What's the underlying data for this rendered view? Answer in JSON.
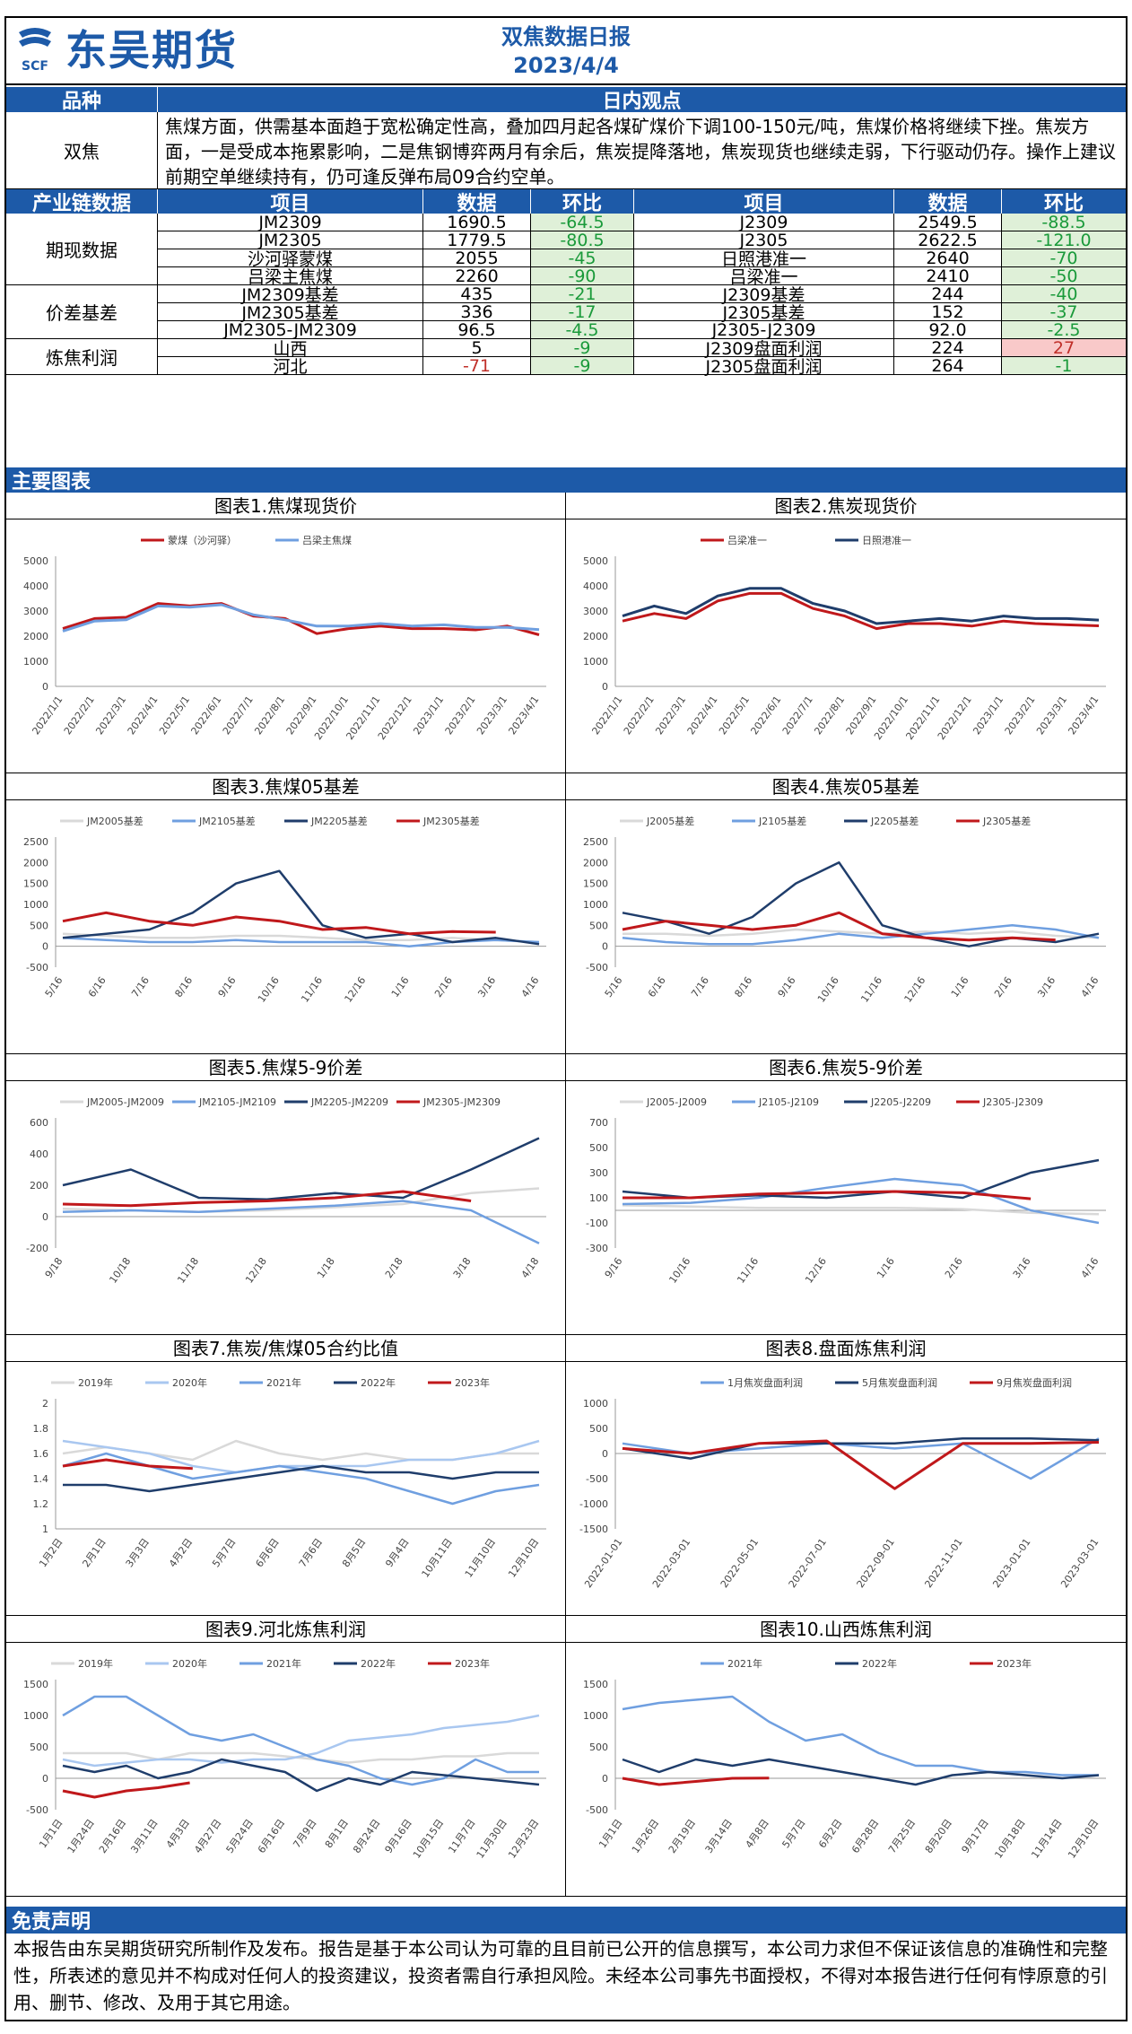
{
  "header": {
    "company": "东吴期货",
    "logo_mark": "SCF",
    "title": "双焦数据日报",
    "date": "2023/4/4"
  },
  "view_section": {
    "col1": "品种",
    "col2": "日内观点",
    "variety": "双焦",
    "text": "焦煤方面，供需基本面趋于宽松确定性高，叠加四月起各煤矿煤价下调100-150元/吨，焦煤价格将继续下挫。焦炭方面，一是受成本拖累影响，二是焦钢博弈两月有余后，焦炭提降落地，焦炭现货也继续走弱，下行驱动仍存。操作上建议前期空单继续持有，仍可逢反弹布局09合约空单。"
  },
  "data_section": {
    "headers": [
      "产业链数据",
      "项目",
      "数据",
      "环比",
      "项目",
      "数据",
      "环比"
    ],
    "groups": [
      {
        "name": "期现数据",
        "rows": [
          {
            "l_item": "JM2309",
            "l_val": "1690.5",
            "l_chg": "-64.5",
            "l_cls": "green",
            "r_item": "J2309",
            "r_val": "2549.5",
            "r_chg": "-88.5",
            "r_cls": "green"
          },
          {
            "l_item": "JM2305",
            "l_val": "1779.5",
            "l_chg": "-80.5",
            "l_cls": "green",
            "r_item": "J2305",
            "r_val": "2622.5",
            "r_chg": "-121.0",
            "r_cls": "green"
          },
          {
            "l_item": "沙河驿蒙煤",
            "l_val": "2055",
            "l_chg": "-45",
            "l_cls": "green",
            "r_item": "日照港准一",
            "r_val": "2640",
            "r_chg": "-70",
            "r_cls": "green"
          },
          {
            "l_item": "吕梁主焦煤",
            "l_val": "2260",
            "l_chg": "-90",
            "l_cls": "green",
            "r_item": "吕梁准一",
            "r_val": "2410",
            "r_chg": "-50",
            "r_cls": "green"
          }
        ]
      },
      {
        "name": "价差基差",
        "rows": [
          {
            "l_item": "JM2309基差",
            "l_val": "435",
            "l_chg": "-21",
            "l_cls": "green",
            "r_item": "J2309基差",
            "r_val": "244",
            "r_chg": "-40",
            "r_cls": "green"
          },
          {
            "l_item": "JM2305基差",
            "l_val": "336",
            "l_chg": "-17",
            "l_cls": "green",
            "r_item": "J2305基差",
            "r_val": "152",
            "r_chg": "-37",
            "r_cls": "green"
          },
          {
            "l_item": "JM2305-JM2309",
            "l_val": "96.5",
            "l_chg": "-4.5",
            "l_cls": "green",
            "r_item": "J2305-J2309",
            "r_val": "92.0",
            "r_chg": "-2.5",
            "r_cls": "green"
          }
        ]
      },
      {
        "name": "炼焦利润",
        "rows": [
          {
            "l_item": "山西",
            "l_val": "5",
            "l_chg": "-9",
            "l_cls": "green",
            "r_item": "J2309盘面利润",
            "r_val": "224",
            "r_chg": "27",
            "r_cls": "red"
          },
          {
            "l_item": "河北",
            "l_val": "-71",
            "l_val_cls": "redtext",
            "l_chg": "-9",
            "l_cls": "green",
            "r_item": "J2305盘面利润",
            "r_val": "264",
            "r_chg": "-1",
            "r_cls": "green"
          }
        ]
      }
    ]
  },
  "charts_section": {
    "title": "主要图表"
  },
  "chart_data": [
    {
      "type": "line",
      "title": "图表1.焦煤现货价",
      "ylim": [
        0,
        5000
      ],
      "yticks": [
        "5000",
        "4000",
        "3000",
        "2000",
        "1000",
        "0"
      ],
      "xticks": [
        "2022/1/1",
        "2022/2/1",
        "2022/3/1",
        "2022/4/1",
        "2022/5/1",
        "2022/6/1",
        "2022/7/1",
        "2022/8/1",
        "2022/9/1",
        "2022/10/1",
        "2022/11/1",
        "2022/12/1",
        "2023/1/1",
        "2023/2/1",
        "2023/3/1",
        "2023/4/1"
      ],
      "series": [
        {
          "name": "蒙煤（沙河驿）",
          "color": "#c0181b",
          "values": [
            2300,
            2700,
            2750,
            3300,
            3200,
            3300,
            2800,
            2700,
            2100,
            2300,
            2400,
            2300,
            2300,
            2250,
            2400,
            2055
          ]
        },
        {
          "name": "吕梁主焦煤",
          "color": "#6f9fe0",
          "values": [
            2200,
            2600,
            2650,
            3200,
            3150,
            3250,
            2850,
            2650,
            2400,
            2400,
            2500,
            2400,
            2450,
            2350,
            2350,
            2260
          ]
        }
      ]
    },
    {
      "type": "line",
      "title": "图表2.焦炭现货价",
      "ylim": [
        0,
        5000
      ],
      "yticks": [
        "5000",
        "4000",
        "3000",
        "2000",
        "1000",
        "0"
      ],
      "xticks": [
        "2022/1/1",
        "2022/2/1",
        "2022/3/1",
        "2022/4/1",
        "2022/5/1",
        "2022/6/1",
        "2022/7/1",
        "2022/8/1",
        "2022/9/1",
        "2022/10/1",
        "2022/11/1",
        "2022/12/1",
        "2023/1/1",
        "2023/2/1",
        "2023/3/1",
        "2023/4/1"
      ],
      "series": [
        {
          "name": "吕梁准一",
          "color": "#c0181b",
          "values": [
            2600,
            2900,
            2700,
            3400,
            3700,
            3700,
            3100,
            2800,
            2300,
            2500,
            2500,
            2400,
            2600,
            2500,
            2450,
            2410
          ]
        },
        {
          "name": "日照港准一",
          "color": "#1f3d6b",
          "values": [
            2800,
            3200,
            2900,
            3600,
            3900,
            3900,
            3300,
            3000,
            2500,
            2600,
            2700,
            2600,
            2800,
            2700,
            2700,
            2640
          ]
        }
      ]
    },
    {
      "type": "line",
      "title": "图表3.焦煤05基差",
      "ylim": [
        -500,
        2500
      ],
      "yticks": [
        "2500",
        "2000",
        "1500",
        "1000",
        "500",
        "0",
        "-500"
      ],
      "xticks": [
        "5/16",
        "6/16",
        "7/16",
        "8/16",
        "9/16",
        "10/16",
        "11/16",
        "12/16",
        "1/16",
        "2/16",
        "3/16",
        "4/16"
      ],
      "series": [
        {
          "name": "JM2005基差",
          "color": "#d9d9d9",
          "values": [
            300,
            250,
            200,
            200,
            250,
            250,
            200,
            150,
            150,
            200,
            150,
            100
          ]
        },
        {
          "name": "JM2105基差",
          "color": "#6f9fe0",
          "values": [
            200,
            150,
            100,
            100,
            150,
            100,
            100,
            100,
            0,
            100,
            150,
            100
          ]
        },
        {
          "name": "JM2205基差",
          "color": "#1f3d6b",
          "values": [
            200,
            300,
            400,
            800,
            1500,
            1800,
            500,
            200,
            300,
            100,
            200,
            50
          ]
        },
        {
          "name": "JM2305基差",
          "color": "#c0181b",
          "values": [
            600,
            800,
            600,
            500,
            700,
            600,
            400,
            450,
            300,
            350,
            336,
            null
          ]
        }
      ]
    },
    {
      "type": "line",
      "title": "图表4.焦炭05基差",
      "ylim": [
        -500,
        2500
      ],
      "yticks": [
        "2500",
        "2000",
        "1500",
        "1000",
        "500",
        "0",
        "-500"
      ],
      "xticks": [
        "5/16",
        "6/16",
        "7/16",
        "8/16",
        "9/16",
        "10/16",
        "11/16",
        "12/16",
        "1/16",
        "2/16",
        "3/16",
        "4/16"
      ],
      "series": [
        {
          "name": "J2005基差",
          "color": "#d9d9d9",
          "values": [
            300,
            300,
            250,
            300,
            400,
            350,
            300,
            350,
            300,
            350,
            250,
            200
          ]
        },
        {
          "name": "J2105基差",
          "color": "#6f9fe0",
          "values": [
            200,
            100,
            50,
            50,
            150,
            300,
            200,
            300,
            400,
            500,
            400,
            200
          ]
        },
        {
          "name": "J2205基差",
          "color": "#1f3d6b",
          "values": [
            800,
            600,
            300,
            700,
            1500,
            2000,
            500,
            200,
            0,
            200,
            100,
            300
          ]
        },
        {
          "name": "J2305基差",
          "color": "#c0181b",
          "values": [
            400,
            600,
            500,
            400,
            500,
            800,
            300,
            200,
            150,
            200,
            152,
            null
          ]
        }
      ]
    },
    {
      "type": "line",
      "title": "图表5.焦煤5-9价差",
      "ylim": [
        -200,
        600
      ],
      "yticks": [
        "600",
        "400",
        "200",
        "0",
        "-200"
      ],
      "xticks": [
        "9/18",
        "10/18",
        "11/18",
        "12/18",
        "1/18",
        "2/18",
        "3/18",
        "4/18"
      ],
      "series": [
        {
          "name": "JM2005-JM2009",
          "color": "#d9d9d9",
          "values": [
            50,
            40,
            30,
            40,
            60,
            80,
            150,
            180
          ]
        },
        {
          "name": "JM2105-JM2109",
          "color": "#6f9fe0",
          "values": [
            30,
            40,
            30,
            50,
            70,
            100,
            40,
            -170
          ]
        },
        {
          "name": "JM2205-JM2209",
          "color": "#1f3d6b",
          "values": [
            200,
            300,
            120,
            110,
            150,
            120,
            300,
            500
          ]
        },
        {
          "name": "JM2305-JM2309",
          "color": "#c0181b",
          "values": [
            80,
            70,
            90,
            100,
            120,
            160,
            100,
            null
          ]
        }
      ]
    },
    {
      "type": "line",
      "title": "图表6.焦炭5-9价差",
      "ylim": [
        -300,
        700
      ],
      "yticks": [
        "700",
        "500",
        "300",
        "100",
        "-100",
        "-300"
      ],
      "xticks": [
        "9/16",
        "10/16",
        "11/16",
        "12/16",
        "1/16",
        "2/16",
        "3/16",
        "4/16"
      ],
      "series": [
        {
          "name": "J2005-J2009",
          "color": "#d9d9d9",
          "values": [
            40,
            30,
            20,
            20,
            20,
            10,
            -20,
            -30
          ]
        },
        {
          "name": "J2105-J2109",
          "color": "#6f9fe0",
          "values": [
            50,
            60,
            100,
            180,
            250,
            200,
            0,
            -100
          ]
        },
        {
          "name": "J2205-J2209",
          "color": "#1f3d6b",
          "values": [
            150,
            100,
            120,
            100,
            150,
            100,
            300,
            400
          ]
        },
        {
          "name": "J2305-J2309",
          "color": "#c0181b",
          "values": [
            100,
            100,
            130,
            140,
            150,
            140,
            92,
            null
          ]
        }
      ]
    },
    {
      "type": "line",
      "title": "图表7.焦炭/焦煤05合约比值",
      "ylim": [
        1,
        2
      ],
      "yticks": [
        "2",
        "1.8",
        "1.6",
        "1.4",
        "1.2",
        "1"
      ],
      "xticks": [
        "1月2日",
        "2月1日",
        "3月3日",
        "4月2日",
        "5月7日",
        "6月6日",
        "7月6日",
        "8月5日",
        "9月4日",
        "10月11日",
        "11月10日",
        "12月10日"
      ],
      "series": [
        {
          "name": "2019年",
          "color": "#d9d9d9",
          "values": [
            1.6,
            1.65,
            1.6,
            1.55,
            1.7,
            1.6,
            1.55,
            1.6,
            1.55,
            1.55,
            1.6,
            1.6
          ]
        },
        {
          "name": "2020年",
          "color": "#a9c7f0",
          "values": [
            1.7,
            1.65,
            1.6,
            1.5,
            1.45,
            1.5,
            1.5,
            1.5,
            1.55,
            1.55,
            1.6,
            1.7
          ]
        },
        {
          "name": "2021年",
          "color": "#6f9fe0",
          "values": [
            1.5,
            1.6,
            1.5,
            1.4,
            1.45,
            1.5,
            1.45,
            1.4,
            1.3,
            1.2,
            1.3,
            1.35
          ]
        },
        {
          "name": "2022年",
          "color": "#1f3d6b",
          "values": [
            1.35,
            1.35,
            1.3,
            1.35,
            1.4,
            1.45,
            1.5,
            1.45,
            1.45,
            1.4,
            1.45,
            1.45
          ]
        },
        {
          "name": "2023年",
          "color": "#c0181b",
          "values": [
            1.5,
            1.55,
            1.5,
            1.48,
            null,
            null,
            null,
            null,
            null,
            null,
            null,
            null
          ]
        }
      ]
    },
    {
      "type": "line",
      "title": "图表8.盘面炼焦利润",
      "ylim": [
        -1500,
        1000
      ],
      "yticks": [
        "1000",
        "500",
        "0",
        "-500",
        "-1000",
        "-1500"
      ],
      "xticks": [
        "2022-01-01",
        "2022-03-01",
        "2022-05-01",
        "2022-07-01",
        "2022-09-01",
        "2022-11-01",
        "2023-01-01",
        "2023-03-01"
      ],
      "series": [
        {
          "name": "1月焦炭盘面利润",
          "color": "#6f9fe0",
          "values": [
            200,
            0,
            100,
            200,
            100,
            200,
            -500,
            300
          ]
        },
        {
          "name": "5月焦炭盘面利润",
          "color": "#1f3d6b",
          "values": [
            100,
            -100,
            200,
            200,
            200,
            300,
            300,
            264
          ]
        },
        {
          "name": "9月焦炭盘面利润",
          "color": "#c0181b",
          "values": [
            100,
            0,
            200,
            250,
            -700,
            200,
            200,
            224
          ]
        }
      ]
    },
    {
      "type": "line",
      "title": "图表9.河北炼焦利润",
      "ylim": [
        -500,
        1500
      ],
      "yticks": [
        "1500",
        "1000",
        "500",
        "0",
        "-500"
      ],
      "xticks": [
        "1月1日",
        "1月24日",
        "2月16日",
        "3月11日",
        "4月3日",
        "4月27日",
        "5月24日",
        "6月16日",
        "7月9日",
        "8月1日",
        "8月24日",
        "9月16日",
        "10月15日",
        "11月7日",
        "11月30日",
        "12月23日"
      ],
      "series": [
        {
          "name": "2019年",
          "color": "#d9d9d9",
          "values": [
            400,
            400,
            400,
            300,
            400,
            400,
            400,
            350,
            300,
            250,
            300,
            300,
            350,
            350,
            400,
            400
          ]
        },
        {
          "name": "2020年",
          "color": "#a9c7f0",
          "values": [
            300,
            200,
            250,
            300,
            300,
            250,
            300,
            300,
            400,
            600,
            650,
            700,
            800,
            850,
            900,
            1000
          ]
        },
        {
          "name": "2021年",
          "color": "#6f9fe0",
          "values": [
            1000,
            1300,
            1300,
            1000,
            700,
            600,
            700,
            500,
            300,
            200,
            0,
            -100,
            0,
            300,
            100,
            100
          ]
        },
        {
          "name": "2022年",
          "color": "#1f3d6b",
          "values": [
            200,
            100,
            200,
            0,
            100,
            300,
            200,
            100,
            -200,
            0,
            -100,
            100,
            50,
            0,
            -50,
            -100
          ]
        },
        {
          "name": "2023年",
          "color": "#c0181b",
          "values": [
            -200,
            -300,
            -200,
            -150,
            -71,
            null,
            null,
            null,
            null,
            null,
            null,
            null,
            null,
            null,
            null,
            null
          ]
        }
      ]
    },
    {
      "type": "line",
      "title": "图表10.山西炼焦利润",
      "ylim": [
        -500,
        1500
      ],
      "yticks": [
        "1500",
        "1000",
        "500",
        "0",
        "-500"
      ],
      "xticks": [
        "1月1日",
        "1月26日",
        "2月19日",
        "3月14日",
        "4月8日",
        "5月7日",
        "6月2日",
        "6月28日",
        "7月25日",
        "8月20日",
        "9月17日",
        "10月18日",
        "11月14日",
        "12月10日"
      ],
      "series": [
        {
          "name": "2021年",
          "color": "#6f9fe0",
          "values": [
            1100,
            1200,
            1250,
            1300,
            900,
            600,
            700,
            400,
            200,
            200,
            100,
            100,
            50,
            50
          ]
        },
        {
          "name": "2022年",
          "color": "#1f3d6b",
          "values": [
            300,
            100,
            300,
            200,
            300,
            200,
            100,
            0,
            -100,
            50,
            100,
            50,
            0,
            50
          ]
        },
        {
          "name": "2023年",
          "color": "#c0181b",
          "values": [
            0,
            -100,
            -50,
            0,
            5,
            null,
            null,
            null,
            null,
            null,
            null,
            null,
            null,
            null
          ]
        }
      ]
    }
  ],
  "disclaimer": {
    "title": "免责声明",
    "text": "本报告由东吴期货研究所制作及发布。报告是基于本公司认为可靠的且目前已公开的信息撰写，本公司力求但不保证该信息的准确性和完整性，所表述的意见并不构成对任何人的投资建议，投资者需自行承担风险。未经本公司事先书面授权，不得对本报告进行任何有悖原意的引用、删节、修改、及用于其它用途。"
  }
}
